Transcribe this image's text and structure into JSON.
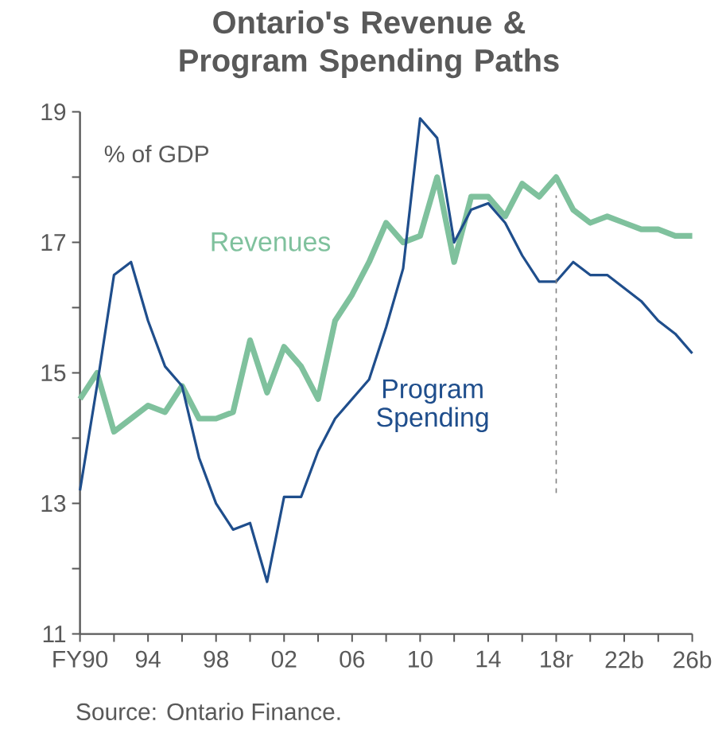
{
  "chart_data": {
    "type": "line",
    "title": "Ontario's Revenue & Program Spending Paths",
    "ylabel": "% of GDP",
    "categories": [
      "FY90",
      null,
      null,
      null,
      "94",
      null,
      null,
      null,
      "98",
      null,
      null,
      null,
      "02",
      null,
      null,
      null,
      "06",
      null,
      null,
      null,
      "10",
      null,
      null,
      null,
      "14",
      null,
      null,
      null,
      "18r",
      null,
      null,
      null,
      "22b",
      null,
      null,
      null,
      "26b"
    ],
    "series": [
      {
        "name": "Revenues",
        "color": "#7fc19d",
        "values": [
          14.6,
          15.0,
          14.1,
          14.3,
          14.5,
          14.4,
          14.8,
          14.3,
          14.3,
          14.4,
          15.5,
          14.7,
          15.4,
          15.1,
          14.6,
          15.8,
          16.2,
          16.7,
          17.3,
          17.0,
          17.1,
          18.0,
          16.7,
          17.7,
          17.7,
          17.4,
          17.9,
          17.7,
          18.0,
          17.5,
          17.3,
          17.4,
          17.3,
          17.2,
          17.2,
          17.1,
          17.1
        ]
      },
      {
        "name": "Program Spending",
        "color": "#1f4e8c",
        "values": [
          13.2,
          14.8,
          16.5,
          16.7,
          15.8,
          15.1,
          14.8,
          13.7,
          13.0,
          12.6,
          12.7,
          11.8,
          13.1,
          13.1,
          13.8,
          14.3,
          14.6,
          14.9,
          15.7,
          16.6,
          18.9,
          18.6,
          17.0,
          17.5,
          17.6,
          17.3,
          16.8,
          16.4,
          16.4,
          16.7,
          16.5,
          16.5,
          16.3,
          16.1,
          15.8,
          15.6,
          15.3
        ]
      }
    ],
    "ylim": [
      11,
      19
    ],
    "yticks": [
      11,
      {
        "value": 12,
        "label": null
      },
      13,
      {
        "value": 14,
        "label": null
      },
      15,
      {
        "value": 16,
        "label": null
      },
      17,
      {
        "value": 18,
        "label": null
      },
      19
    ],
    "ref_lines": [
      {
        "axis": "x",
        "value": "18r",
        "color": "#808080",
        "line_style": "dashed"
      }
    ],
    "annotations": [
      "Source: Ontario Finance."
    ],
    "grid": false,
    "legend": false,
    "marker": "none",
    "line_style": "solid"
  }
}
